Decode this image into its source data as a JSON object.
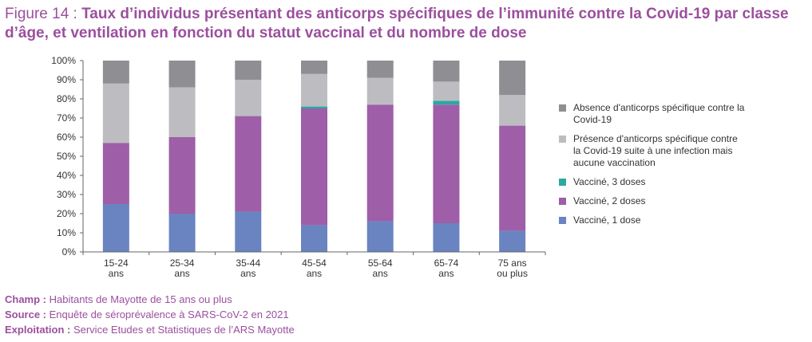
{
  "figure": {
    "label": "Figure 14 : ",
    "title": "Taux d’individus présentant des anticorps spécifiques de l’immunité contre la Covid-19 par classe d’âge, et ventilation en fonction du statut vaccinal et du nombre de dose"
  },
  "colors": {
    "title": "#9b4f9e",
    "absence": "#8e8e93",
    "infection": "#bdbdc1",
    "dose3": "#2aa9a0",
    "dose2": "#9e5ea8",
    "dose1": "#6a83c1"
  },
  "chart_data": {
    "type": "bar",
    "stacked": true,
    "categories": [
      [
        "15-24",
        "ans"
      ],
      [
        "25-34",
        "ans"
      ],
      [
        "35-44",
        "ans"
      ],
      [
        "45-54",
        "ans"
      ],
      [
        "55-64",
        "ans"
      ],
      [
        "65-74",
        "ans"
      ],
      [
        "75 ans",
        "ou plus"
      ]
    ],
    "series": [
      {
        "name": "Vaccinés, 1 dose",
        "key": "dose1",
        "values": [
          25,
          20,
          21,
          14,
          16,
          15,
          11
        ]
      },
      {
        "name": "Vaccinés, 2 doses",
        "key": "dose2",
        "values": [
          32,
          40,
          50,
          61,
          61,
          62,
          55
        ]
      },
      {
        "name": "Vaccinés, 3 doses",
        "key": "dose3",
        "values": [
          0,
          0,
          0,
          1,
          0,
          2,
          0
        ]
      },
      {
        "name": "Présence d'anticorps spécifique contre la Covid-19 suite à une infection mais aucune vaccination",
        "key": "infection",
        "values": [
          31,
          26,
          19,
          17,
          14,
          10,
          16
        ]
      },
      {
        "name": "Absence d'anticorps spécifique contre la Covid-19",
        "key": "absence",
        "values": [
          12,
          14,
          10,
          7,
          9,
          11,
          18
        ]
      }
    ],
    "y_ticks": [
      "0%",
      "10%",
      "20%",
      "30%",
      "40%",
      "50%",
      "60%",
      "70%",
      "80%",
      "90%",
      "100%"
    ],
    "ylim": [
      0,
      100
    ],
    "grid": false,
    "legend_position": "right"
  },
  "legend": [
    {
      "key": "absence",
      "label": "Absence d'anticorps spécifique contre la Covid-19"
    },
    {
      "key": "infection",
      "label": "Présence d'anticorps spécifique contre la Covid-19 suite à une infection mais aucune vaccination"
    },
    {
      "key": "dose3",
      "label": "Vacciné, 3 doses"
    },
    {
      "key": "dose2",
      "label": "Vacciné, 2 doses"
    },
    {
      "key": "dose1",
      "label": "Vacciné, 1 dose"
    }
  ],
  "notes": {
    "champ_label": "Champ :",
    "champ_text": " Habitants de Mayotte de 15 ans ou plus",
    "source_label": "Source :",
    "source_text": " Enquête de séroprévalence à SARS-CoV-2 en 2021",
    "exploitation_label": "Exploitation :",
    "exploitation_text": " Service Etudes et Statistiques de l’ARS Mayotte"
  }
}
